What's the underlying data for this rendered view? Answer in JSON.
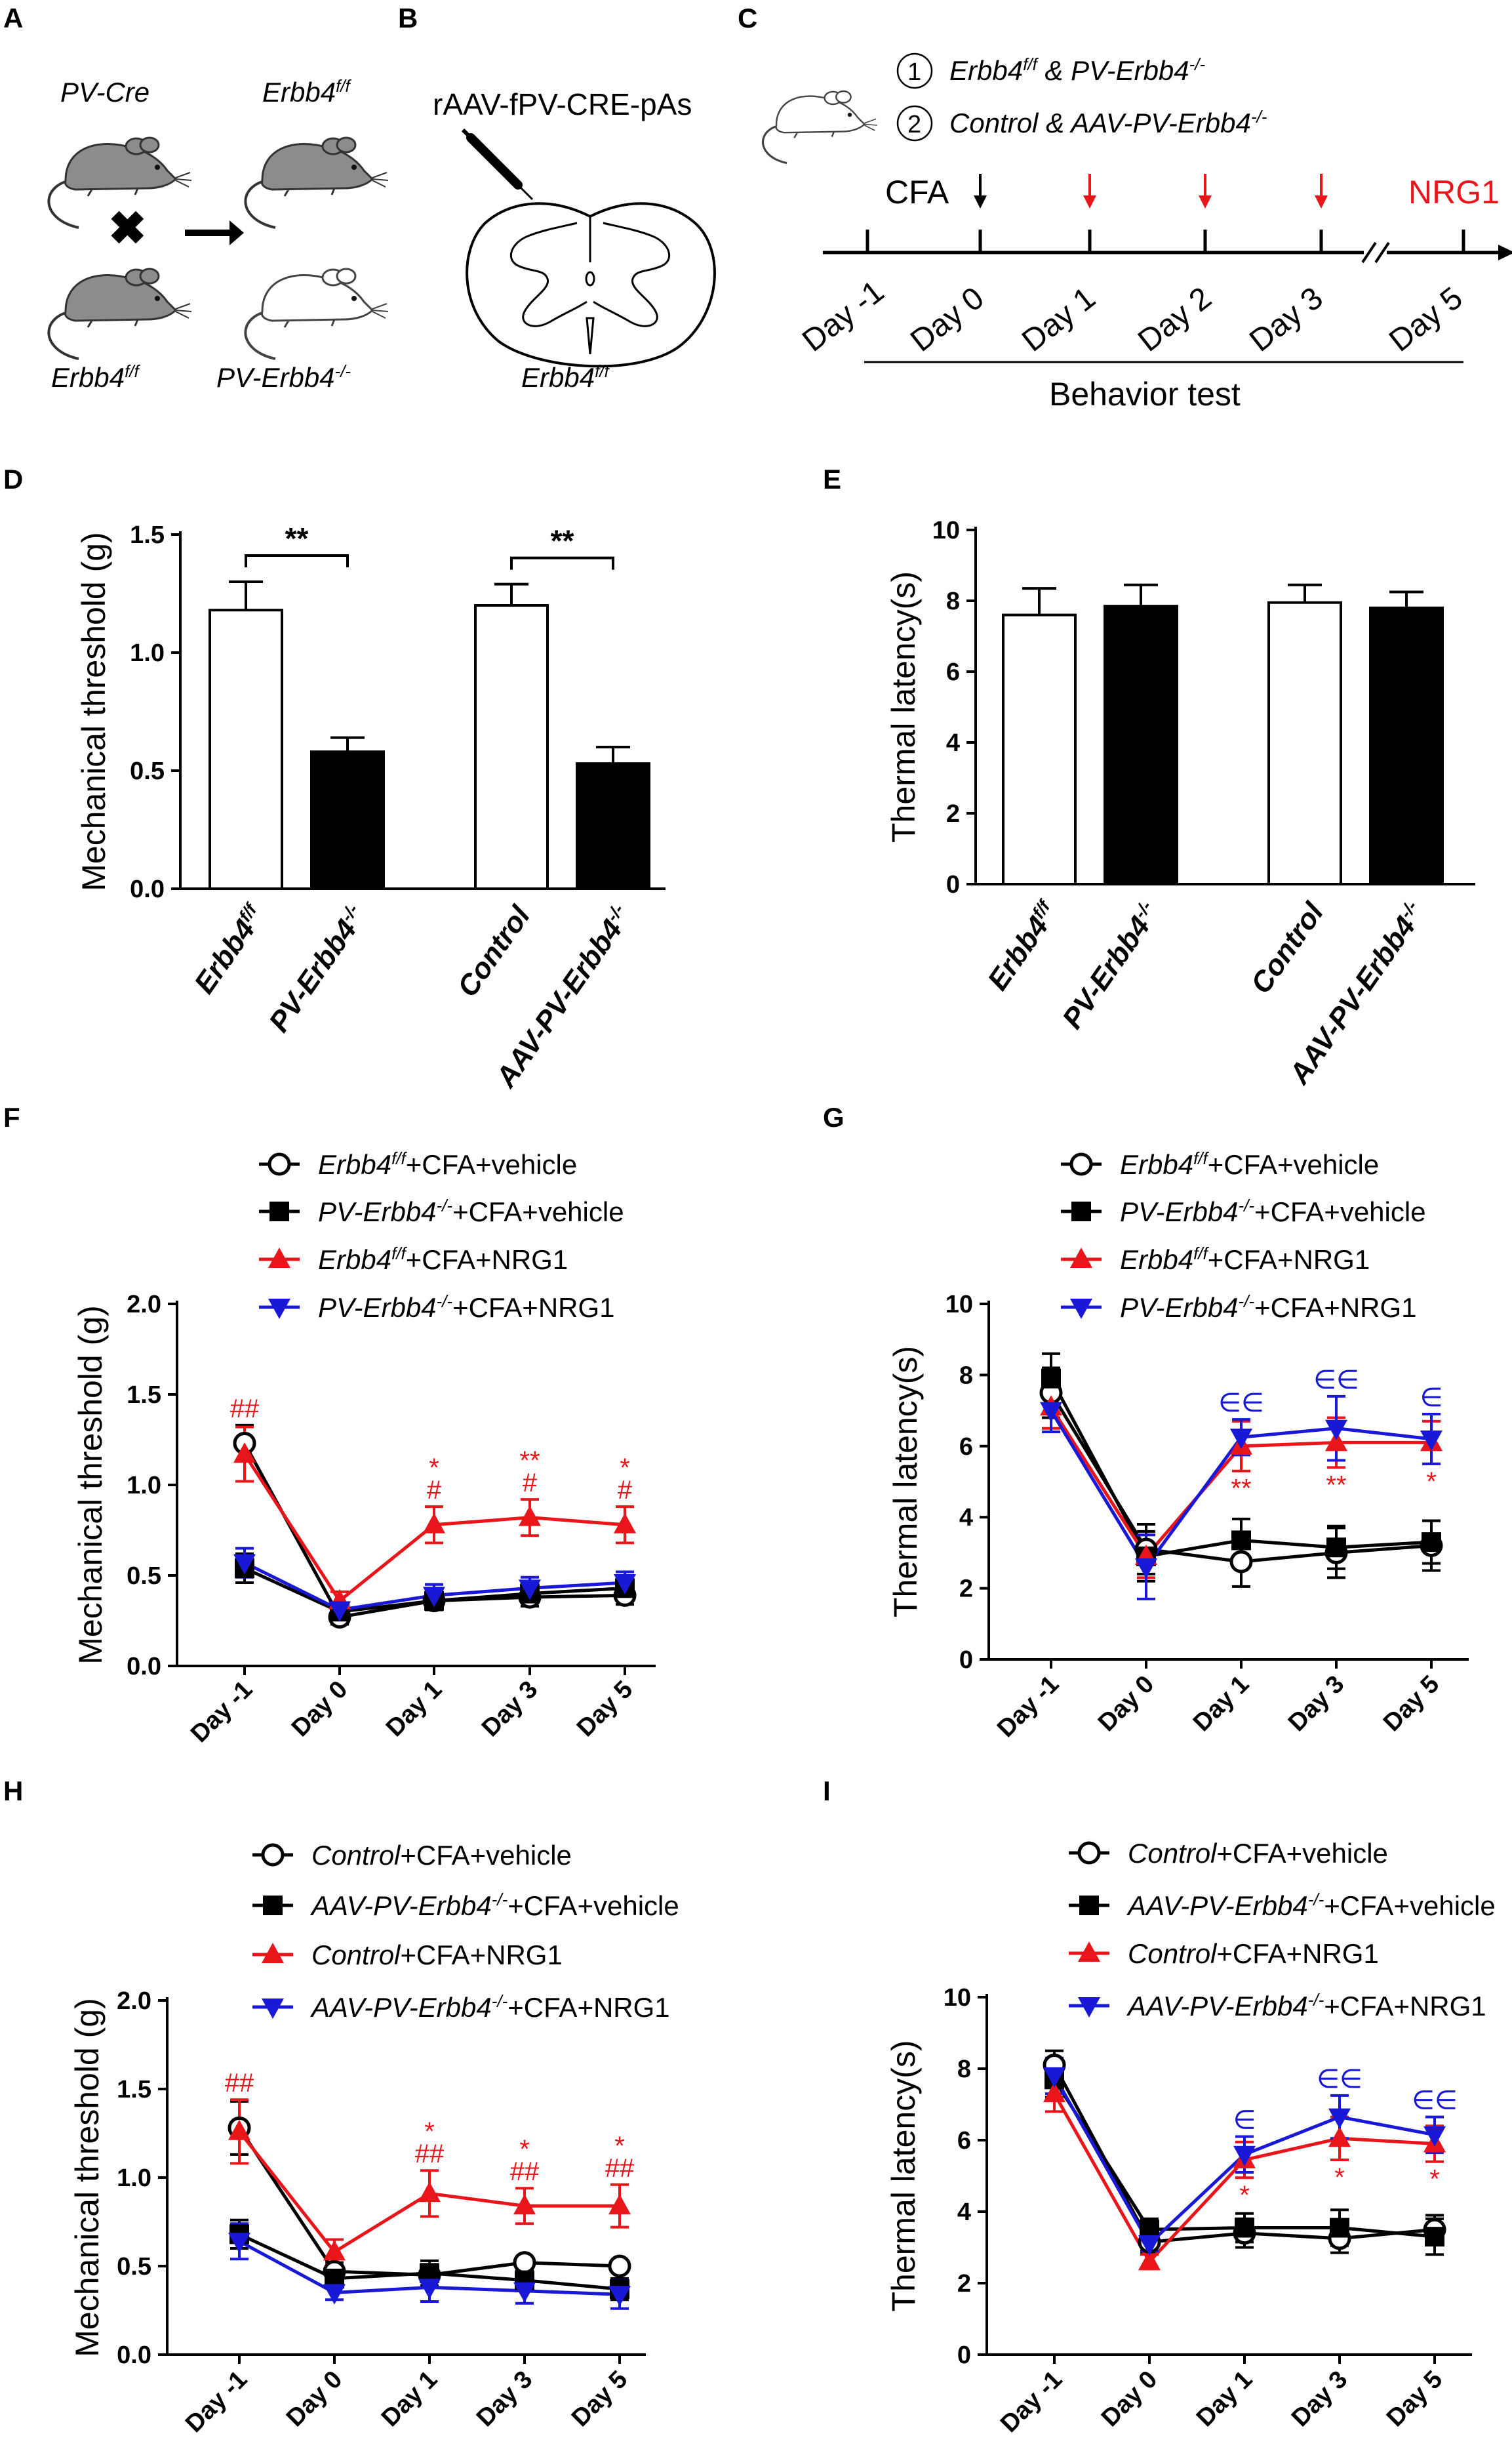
{
  "panels": {
    "A": {
      "letter": "A",
      "mouse_labels": [
        "PV-Cre",
        "Erbb4f/f",
        "Erbb4f/f",
        "PV-Erbb4-/-"
      ],
      "top_left": {
        "base": "PV-Cre"
      },
      "top_right": {
        "base": "Erbb4",
        "sup": "f/f"
      },
      "bottom_left": {
        "base": "Erbb4",
        "sup": "f/f"
      },
      "bottom_right": {
        "base": "PV-Erbb4",
        "sup": "-/-"
      }
    },
    "B": {
      "letter": "B",
      "virus": "rAAV-fPV-CRE-pAs",
      "mouse": {
        "base": "Erbb4",
        "sup": "f/f"
      }
    },
    "C": {
      "letter": "C",
      "legend_1": {
        "num": "1",
        "a_base": "Erbb4",
        "a_sup": "f/f",
        "mid": " & ",
        "b_base": "PV-Erbb4",
        "b_sup": "-/-"
      },
      "legend_2": {
        "num": "2",
        "a": "Control",
        "mid": " & ",
        "b_base": "AAV-PV-Erbb4",
        "b_sup": "-/-"
      },
      "cfa": "CFA",
      "nrg1": "NRG1",
      "days": [
        "Day -1",
        "Day 0",
        "Day 1",
        "Day 2",
        "Day 3",
        "Day 5"
      ],
      "behavior_test": "Behavior test",
      "colors": {
        "black": "#000000",
        "red": "#e8161b"
      }
    }
  },
  "chart_data": [
    {
      "panel": "D",
      "type": "bar",
      "ylabel": "Mechanical threshold (g)",
      "ylim": [
        0,
        1.5
      ],
      "yticks": [
        "0.0",
        "0.5",
        "1.0",
        "1.5"
      ],
      "categories": [
        {
          "base": "Erbb4",
          "sup": "f/f"
        },
        {
          "base": "PV-Erbb4",
          "sup": "-/-"
        },
        {
          "base": "Control",
          "sup": ""
        },
        {
          "base": "AAV-PV-Erbb4",
          "sup": "-/-"
        }
      ],
      "values": [
        1.18,
        0.58,
        1.2,
        0.53
      ],
      "errors": [
        0.12,
        0.06,
        0.09,
        0.07
      ],
      "fills": [
        "#ffffff",
        "#000000",
        "#ffffff",
        "#000000"
      ],
      "brackets": [
        {
          "from": 0,
          "to": 1,
          "label": "**"
        },
        {
          "from": 2,
          "to": 3,
          "label": "**"
        }
      ]
    },
    {
      "panel": "E",
      "type": "bar",
      "ylabel": "Thermal latency(s)",
      "ylim": [
        0,
        10
      ],
      "yticks": [
        "0",
        "2",
        "4",
        "6",
        "8",
        "10"
      ],
      "categories": [
        {
          "base": "Erbb4",
          "sup": "f/f"
        },
        {
          "base": "PV-Erbb4",
          "sup": "-/-"
        },
        {
          "base": "Control",
          "sup": ""
        },
        {
          "base": "AAV-PV-Erbb4",
          "sup": "-/-"
        }
      ],
      "values": [
        7.6,
        7.85,
        7.95,
        7.8
      ],
      "errors": [
        0.75,
        0.6,
        0.5,
        0.45
      ],
      "fills": [
        "#ffffff",
        "#000000",
        "#ffffff",
        "#000000"
      ],
      "brackets": []
    },
    {
      "panel": "F",
      "type": "line",
      "ylabel": "Mechanical threshold (g)",
      "ylim": [
        0,
        2
      ],
      "yticks": [
        "0.0",
        "0.5",
        "1.0",
        "1.5",
        "2.0"
      ],
      "categories": [
        "Day -1",
        "Day 0",
        "Day 1",
        "Day 3",
        "Day 5"
      ],
      "series": [
        {
          "name": {
            "base": "Erbb4",
            "sup": "f/f",
            "rest": "+CFA+vehicle"
          },
          "marker": "circle",
          "color": "#000000",
          "values": [
            1.23,
            0.27,
            0.36,
            0.38,
            0.39
          ],
          "errors": [
            0.1,
            0.04,
            0.05,
            0.05,
            0.05
          ]
        },
        {
          "name": {
            "base": "PV-Erbb4",
            "sup": "-/-",
            "rest": "+CFA+vehicle"
          },
          "marker": "square",
          "color": "#000000",
          "values": [
            0.54,
            0.3,
            0.36,
            0.4,
            0.43
          ],
          "errors": [
            0.08,
            0.04,
            0.05,
            0.05,
            0.05
          ]
        },
        {
          "name": {
            "base": "Erbb4",
            "sup": "f/f",
            "rest": "+CFA+NRG1"
          },
          "marker": "triangle-up",
          "color": "#e8161b",
          "values": [
            1.17,
            0.36,
            0.78,
            0.82,
            0.78
          ],
          "errors": [
            0.15,
            0.05,
            0.1,
            0.1,
            0.1
          ]
        },
        {
          "name": {
            "base": "PV-Erbb4",
            "sup": "-/-",
            "rest": "+CFA+NRG1"
          },
          "marker": "triangle-down",
          "color": "#1818d6",
          "values": [
            0.57,
            0.31,
            0.39,
            0.43,
            0.46
          ],
          "errors": [
            0.08,
            0.04,
            0.06,
            0.06,
            0.06
          ]
        }
      ],
      "annotations": [
        {
          "category": 0,
          "lines": [
            "##"
          ],
          "color": "#e8161b"
        },
        {
          "category": 2,
          "lines": [
            "*",
            "#"
          ],
          "color": "#e8161b"
        },
        {
          "category": 3,
          "lines": [
            "**",
            "#"
          ],
          "color": "#e8161b"
        },
        {
          "category": 4,
          "lines": [
            "*",
            "#"
          ],
          "color": "#e8161b"
        }
      ],
      "below_annotations": []
    },
    {
      "panel": "G",
      "type": "line",
      "ylabel": "Thermal latency(s)",
      "ylim": [
        0,
        10
      ],
      "yticks": [
        "0",
        "2",
        "4",
        "6",
        "8",
        "10"
      ],
      "categories": [
        "Day -1",
        "Day 0",
        "Day 1",
        "Day 3",
        "Day 5"
      ],
      "series": [
        {
          "name": {
            "base": "Erbb4",
            "sup": "f/f",
            "rest": "+CFA+vehicle"
          },
          "marker": "circle",
          "color": "#000000",
          "values": [
            7.5,
            3.1,
            2.75,
            3.0,
            3.2
          ],
          "errors": [
            0.7,
            0.7,
            0.7,
            0.7,
            0.7
          ]
        },
        {
          "name": {
            "base": "PV-Erbb4",
            "sup": "-/-",
            "rest": "+CFA+vehicle"
          },
          "marker": "square",
          "color": "#000000",
          "values": [
            7.9,
            2.9,
            3.35,
            3.15,
            3.3
          ],
          "errors": [
            0.7,
            0.7,
            0.6,
            0.6,
            0.6
          ]
        },
        {
          "name": {
            "base": "Erbb4",
            "sup": "f/f",
            "rest": "+CFA+NRG1"
          },
          "marker": "triangle-up",
          "color": "#e8161b",
          "values": [
            7.1,
            2.9,
            6.0,
            6.1,
            6.1
          ],
          "errors": [
            0.6,
            0.6,
            0.7,
            0.7,
            0.6
          ]
        },
        {
          "name": {
            "base": "PV-Erbb4",
            "sup": "-/-",
            "rest": "+CFA+NRG1"
          },
          "marker": "triangle-down",
          "color": "#1818d6",
          "values": [
            7.0,
            2.6,
            6.25,
            6.5,
            6.2
          ],
          "errors": [
            0.6,
            0.9,
            0.5,
            0.9,
            0.7
          ]
        }
      ],
      "annotations": [
        {
          "category": 2,
          "lines": [
            "∈∈"
          ],
          "color": "#1818d6"
        },
        {
          "category": 3,
          "lines": [
            "∈∈"
          ],
          "color": "#1818d6"
        },
        {
          "category": 4,
          "lines": [
            "∈"
          ],
          "color": "#1818d6"
        }
      ],
      "below_annotations": [
        {
          "category": 2,
          "text": "**",
          "color": "#e8161b"
        },
        {
          "category": 3,
          "text": "**",
          "color": "#e8161b"
        },
        {
          "category": 4,
          "text": "*",
          "color": "#e8161b"
        }
      ]
    },
    {
      "panel": "H",
      "type": "line",
      "ylabel": "Mechanical threshold (g)",
      "ylim": [
        0,
        2
      ],
      "yticks": [
        "0.0",
        "0.5",
        "1.0",
        "1.5",
        "2.0"
      ],
      "categories": [
        "Day -1",
        "Day 0",
        "Day 1",
        "Day 3",
        "Day 5"
      ],
      "series": [
        {
          "name": {
            "base": "Control",
            "sup": "",
            "rest": "+CFA+vehicle"
          },
          "marker": "circle",
          "color": "#000000",
          "values": [
            1.28,
            0.47,
            0.45,
            0.52,
            0.5
          ],
          "errors": [
            0.15,
            0.05,
            0.06,
            0.03,
            0.03
          ]
        },
        {
          "name": {
            "base": "AAV-PV-Erbb4",
            "sup": "-/-",
            "rest": "+CFA+vehicle"
          },
          "marker": "square",
          "color": "#000000",
          "values": [
            0.68,
            0.43,
            0.46,
            0.42,
            0.37
          ],
          "errors": [
            0.08,
            0.05,
            0.07,
            0.06,
            0.06
          ]
        },
        {
          "name": {
            "base": "Control",
            "sup": "",
            "rest": "+CFA+NRG1"
          },
          "marker": "triangle-up",
          "color": "#e8161b",
          "values": [
            1.26,
            0.58,
            0.91,
            0.84,
            0.84
          ],
          "errors": [
            0.18,
            0.07,
            0.13,
            0.1,
            0.12
          ]
        },
        {
          "name": {
            "base": "AAV-PV-Erbb4",
            "sup": "-/-",
            "rest": "+CFA+NRG1"
          },
          "marker": "triangle-down",
          "color": "#1818d6",
          "values": [
            0.64,
            0.35,
            0.38,
            0.36,
            0.34
          ],
          "errors": [
            0.1,
            0.04,
            0.08,
            0.07,
            0.08
          ]
        }
      ],
      "annotations": [
        {
          "category": 0,
          "lines": [
            "##"
          ],
          "color": "#e8161b"
        },
        {
          "category": 2,
          "lines": [
            "*",
            "##"
          ],
          "color": "#e8161b"
        },
        {
          "category": 3,
          "lines": [
            "*",
            "##"
          ],
          "color": "#e8161b"
        },
        {
          "category": 4,
          "lines": [
            "*",
            "##"
          ],
          "color": "#e8161b"
        }
      ],
      "below_annotations": []
    },
    {
      "panel": "I",
      "type": "line",
      "ylabel": "Thermal latency(s)",
      "ylim": [
        0,
        10
      ],
      "yticks": [
        "0",
        "2",
        "4",
        "6",
        "8",
        "10"
      ],
      "categories": [
        "Day -1",
        "Day 0",
        "Day 1",
        "Day 3",
        "Day 5"
      ],
      "series": [
        {
          "name": {
            "base": "Control",
            "sup": "",
            "rest": "+CFA+vehicle"
          },
          "marker": "circle",
          "color": "#000000",
          "values": [
            8.1,
            3.15,
            3.4,
            3.25,
            3.5
          ],
          "errors": [
            0.4,
            0.3,
            0.4,
            0.4,
            0.4
          ]
        },
        {
          "name": {
            "base": "AAV-PV-Erbb4",
            "sup": "-/-",
            "rest": "+CFA+vehicle"
          },
          "marker": "square",
          "color": "#000000",
          "values": [
            7.7,
            3.5,
            3.55,
            3.55,
            3.3
          ],
          "errors": [
            0.5,
            0.3,
            0.4,
            0.5,
            0.5
          ]
        },
        {
          "name": {
            "base": "Control",
            "sup": "",
            "rest": "+CFA+NRG1"
          },
          "marker": "triangle-up",
          "color": "#e8161b",
          "values": [
            7.3,
            2.6,
            5.45,
            6.05,
            5.9
          ],
          "errors": [
            0.5,
            0.2,
            0.5,
            0.6,
            0.5
          ]
        },
        {
          "name": {
            "base": "AAV-PV-Erbb4",
            "sup": "-/-",
            "rest": "+CFA+NRG1"
          },
          "marker": "triangle-down",
          "color": "#1818d6",
          "values": [
            7.8,
            3.1,
            5.6,
            6.65,
            6.15
          ],
          "errors": [
            0.5,
            0.2,
            0.5,
            0.6,
            0.5
          ]
        }
      ],
      "annotations": [
        {
          "category": 2,
          "lines": [
            "∈"
          ],
          "color": "#1818d6"
        },
        {
          "category": 3,
          "lines": [
            "∈∈"
          ],
          "color": "#1818d6"
        },
        {
          "category": 4,
          "lines": [
            "∈∈"
          ],
          "color": "#1818d6"
        }
      ],
      "below_annotations": [
        {
          "category": 2,
          "text": "*",
          "color": "#e8161b"
        },
        {
          "category": 3,
          "text": "*",
          "color": "#e8161b"
        },
        {
          "category": 4,
          "text": "*",
          "color": "#e8161b"
        }
      ]
    }
  ]
}
